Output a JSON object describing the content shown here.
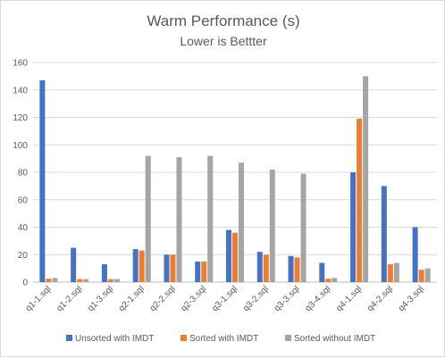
{
  "chart_data": {
    "type": "bar",
    "title": "Warm Performance (s)",
    "subtitle": "Lower is Bettter",
    "xlabel": "",
    "ylabel": "",
    "ylim": [
      0,
      160
    ],
    "yticks": [
      0,
      20,
      40,
      60,
      80,
      100,
      120,
      140,
      160
    ],
    "grid": true,
    "legend_position": "bottom",
    "categories": [
      "q1-1.sql",
      "q1-2.sql",
      "q1-3.sql",
      "q2-1.sql",
      "q2-2.sql",
      "q2-3.sql",
      "q3-1.sql",
      "q3-2.sql",
      "q3-3.sql",
      "q3-4.sql",
      "q4-1.sql",
      "q4-2.sql",
      "q4-3.sql"
    ],
    "series": [
      {
        "name": "Unsorted with IMDT",
        "color": "#4472c4",
        "values": [
          147,
          25,
          13,
          24,
          20,
          15,
          38,
          22,
          19,
          14,
          80,
          70,
          40
        ]
      },
      {
        "name": "Sorted with IMDT",
        "color": "#ed7d31",
        "values": [
          2.5,
          2.2,
          2.2,
          23,
          20,
          15,
          36,
          20,
          18,
          2.5,
          119,
          13,
          9
        ]
      },
      {
        "name": "Sorted without IMDT",
        "color": "#a5a5a5",
        "values": [
          3,
          2.2,
          2.2,
          92,
          91,
          92,
          87,
          82,
          79,
          3,
          150,
          14,
          10
        ]
      }
    ]
  }
}
